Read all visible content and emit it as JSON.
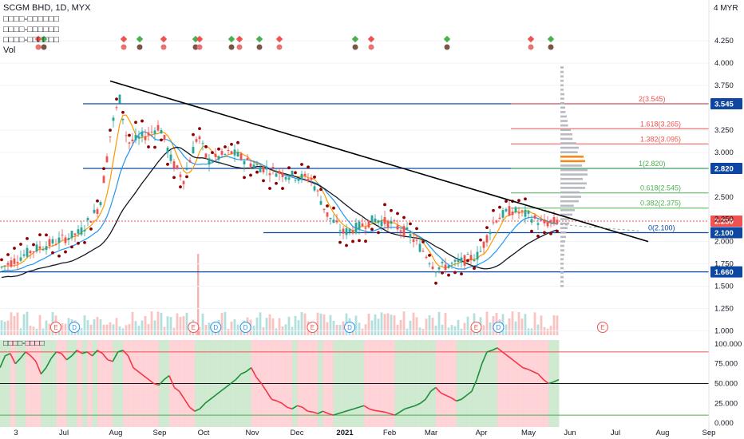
{
  "header": {
    "symbol_line": "SCGM BHD, 1D, MYX",
    "indicator_1": "□□□□-□□□□□□",
    "indicator_2": "□□□□-□□□□□□",
    "indicator_3": "□□□□-□□□□□□",
    "vol": "Vol",
    "osc_label": "□□□□-□□□□"
  },
  "currency_label": "4 MYR",
  "colors": {
    "up": "#26a69a",
    "down": "#ef5350",
    "horizontal_level": "#0d47a1",
    "trendline": "#000000",
    "fib_red": "#ef5350",
    "fib_green": "#4caf50",
    "osc_line_red": "#f23645",
    "osc_line_green": "#1b8f3a",
    "osc_bg_red": "#ffcdd2",
    "osc_bg_green": "#c8e6c9"
  },
  "chart_data": {
    "type": "candlestick",
    "xlabel": "",
    "ylabel": "",
    "x_tick_labels": [
      "3",
      "Jul",
      "Aug",
      "Sep",
      "Oct",
      "Nov",
      "Dec",
      "2021",
      "Feb",
      "Mar",
      "Apr",
      "May",
      "Jun",
      "Jul",
      "Aug",
      "Sep"
    ],
    "price_axis": {
      "ticks": [
        "4.250",
        "4.000",
        "3.750",
        "3.250",
        "3.000",
        "2.500",
        "2.250",
        "2.000",
        "1.750",
        "1.500",
        "1.250",
        "1.000"
      ],
      "ylim": [
        0.95,
        4.35
      ]
    },
    "horizontal_levels": [
      {
        "value": 3.545,
        "label": "3.545"
      },
      {
        "value": 2.82,
        "label": "2.820"
      },
      {
        "value": 2.1,
        "label": "2.100"
      },
      {
        "value": 1.66,
        "label": "1.660"
      }
    ],
    "current_price": {
      "value": 2.23,
      "label": "2.230"
    },
    "fibonacci_levels": [
      {
        "ratio": "2",
        "price": "3.545",
        "text": "2(3.545)",
        "color": "red"
      },
      {
        "ratio": "1.618",
        "price": "3.265",
        "text": "1.618(3.265)",
        "color": "red"
      },
      {
        "ratio": "1.382",
        "price": "3.095",
        "text": "1.382(3.095)",
        "color": "red"
      },
      {
        "ratio": "1",
        "price": "2.820",
        "text": "1(2.820)",
        "color": "green"
      },
      {
        "ratio": "0.618",
        "price": "2.545",
        "text": "0.618(2.545)",
        "color": "green"
      },
      {
        "ratio": "0.382",
        "price": "2.375",
        "text": "0.382(2.375)",
        "color": "green"
      },
      {
        "ratio": "0",
        "price": "2.100",
        "text": "0(2.100)",
        "color": "blue"
      }
    ],
    "trendline": {
      "start": {
        "x": "Aug",
        "y": 3.8
      },
      "end": {
        "x": "Jul",
        "y": 2.0
      }
    },
    "event_markers": [
      {
        "x_pct": 0.075,
        "letter": "E"
      },
      {
        "x_pct": 0.1,
        "letter": "D"
      },
      {
        "x_pct": 0.26,
        "letter": "E"
      },
      {
        "x_pct": 0.29,
        "letter": "D"
      },
      {
        "x_pct": 0.33,
        "letter": "D"
      },
      {
        "x_pct": 0.42,
        "letter": "E"
      },
      {
        "x_pct": 0.47,
        "letter": "D"
      },
      {
        "x_pct": 0.64,
        "letter": "E"
      },
      {
        "x_pct": 0.67,
        "letter": "D"
      },
      {
        "x_pct": 0.81,
        "letter": "E"
      }
    ],
    "oscillator": {
      "ticks": [
        "100.000",
        "75.000",
        "50.000",
        "25.000",
        "0.000"
      ],
      "ylim": [
        -5,
        105
      ],
      "levels": [
        90,
        50,
        10
      ],
      "values": [
        70,
        85,
        88,
        75,
        82,
        90,
        85,
        78,
        62,
        70,
        82,
        90,
        88,
        80,
        85,
        92,
        88,
        90,
        85,
        92,
        88,
        80,
        78,
        90,
        92,
        85,
        70,
        65,
        60,
        55,
        50,
        48,
        55,
        60,
        45,
        40,
        30,
        20,
        15,
        18,
        25,
        30,
        35,
        40,
        45,
        50,
        55,
        62,
        65,
        70,
        58,
        50,
        40,
        30,
        28,
        25,
        20,
        18,
        22,
        20,
        15,
        14,
        12,
        15,
        12,
        10,
        12,
        14,
        16,
        18,
        20,
        22,
        18,
        16,
        15,
        14,
        12,
        10,
        14,
        18,
        20,
        22,
        25,
        30,
        40,
        45,
        38,
        35,
        32,
        28,
        30,
        35,
        40,
        55,
        75,
        90,
        92,
        95,
        90,
        85,
        80,
        75,
        70,
        68,
        65,
        62,
        55,
        50,
        52,
        55
      ]
    }
  }
}
